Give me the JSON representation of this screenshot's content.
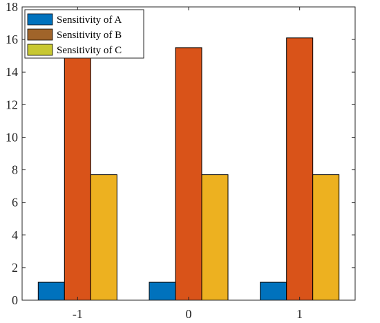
{
  "chart_data": {
    "type": "bar",
    "title": "",
    "xlabel": "",
    "ylabel": "",
    "categories": [
      "-1",
      "0",
      "1"
    ],
    "series": [
      {
        "name": "Sensitivity of A",
        "color": "#0072BD",
        "values": [
          1.1,
          1.1,
          1.1
        ]
      },
      {
        "name": "Sensitivity of B",
        "color": "#D95319",
        "values": [
          14.9,
          15.5,
          16.1
        ]
      },
      {
        "name": "Sensitivity of C",
        "color": "#EDB120",
        "values": [
          7.7,
          7.7,
          7.7
        ]
      }
    ],
    "ylim": [
      0,
      18
    ],
    "yticks": [
      0,
      2,
      4,
      6,
      8,
      10,
      12,
      14,
      16,
      18
    ],
    "legend": {
      "position": "top-left",
      "swatch_colors": [
        "#0072BD",
        "#A0642A",
        "#C8C832"
      ]
    },
    "grid": false,
    "box": true
  }
}
